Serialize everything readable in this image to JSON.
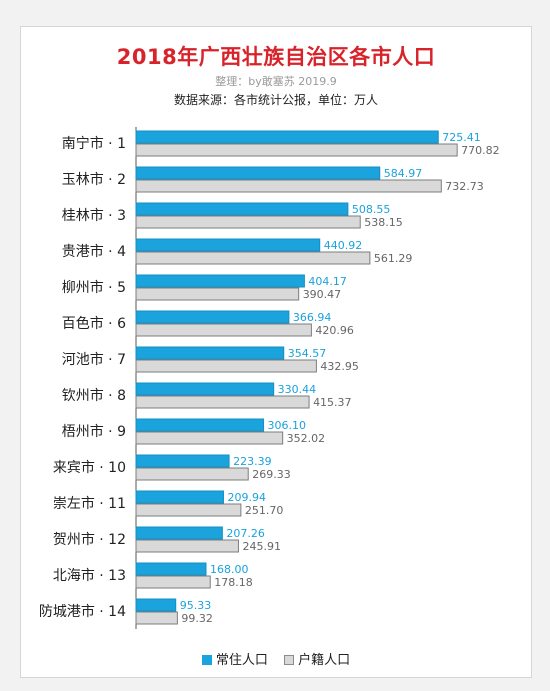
{
  "chart_data": {
    "type": "bar",
    "orientation": "horizontal",
    "title": "2018年广西壮族自治区各市人口",
    "credit": "整理：by敢塞苏 2019.9",
    "source": "数据来源：各市统计公报，单位：万人",
    "categories": [
      "南宁市 · 1",
      "玉林市 · 2",
      "桂林市 · 3",
      "贵港市 · 4",
      "柳州市 · 5",
      "百色市 · 6",
      "河池市 · 7",
      "钦州市 · 8",
      "梧州市 · 9",
      "来宾市 · 10",
      "崇左市 · 11",
      "贺州市 · 12",
      "北海市 · 13",
      "防城港市 · 14"
    ],
    "series": [
      {
        "name": "常住人口",
        "color": "#1aa3dc",
        "values": [
          725.41,
          584.97,
          508.55,
          440.92,
          404.17,
          366.94,
          354.57,
          330.44,
          306.1,
          223.39,
          209.94,
          207.26,
          168.0,
          95.33
        ],
        "labels": [
          "725.41",
          "584.97",
          "508.55",
          "440.92",
          "404.17",
          "366.94",
          "354.57",
          "330.44",
          "306.10",
          "223.39",
          "209.94",
          "207.26",
          "168.00",
          "95.33"
        ]
      },
      {
        "name": "户籍人口",
        "color": "#d9d9d9",
        "values": [
          770.82,
          732.73,
          538.15,
          561.29,
          390.47,
          420.96,
          432.95,
          415.37,
          352.02,
          269.33,
          251.7,
          245.91,
          178.18,
          99.32
        ],
        "labels": [
          "770.82",
          "732.73",
          "538.15",
          "561.29",
          "390.47",
          "420.96",
          "432.95",
          "415.37",
          "352.02",
          "269.33",
          "251.70",
          "245.91",
          "178.18",
          "99.32"
        ]
      }
    ],
    "xlim": [
      0,
      780
    ],
    "grid": false,
    "legend": "bottom"
  }
}
